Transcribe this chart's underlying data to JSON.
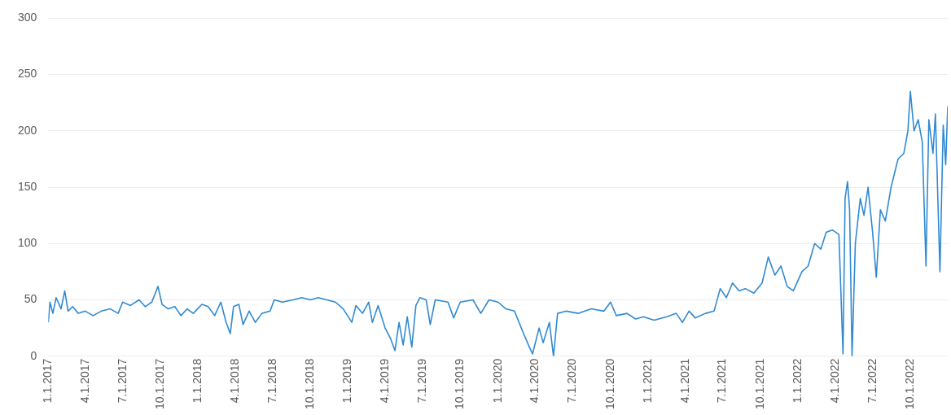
{
  "chart_data": {
    "type": "line",
    "color": "#2f8ad3",
    "grid": "y",
    "legend": false,
    "marker": "none",
    "line_style": "solid",
    "x": [
      "2017-01-01",
      "2017-01-05",
      "2017-01-12",
      "2017-01-20",
      "2017-02-01",
      "2017-02-10",
      "2017-02-18",
      "2017-03-01",
      "2017-03-15",
      "2017-04-01",
      "2017-04-20",
      "2017-05-10",
      "2017-06-01",
      "2017-06-20",
      "2017-07-01",
      "2017-07-20",
      "2017-08-10",
      "2017-08-25",
      "2017-09-10",
      "2017-09-25",
      "2017-10-05",
      "2017-10-20",
      "2017-11-05",
      "2017-11-20",
      "2017-12-05",
      "2017-12-20",
      "2018-01-10",
      "2018-01-25",
      "2018-02-10",
      "2018-02-25",
      "2018-03-10",
      "2018-03-20",
      "2018-03-28",
      "2018-04-10",
      "2018-04-20",
      "2018-05-05",
      "2018-05-20",
      "2018-06-05",
      "2018-06-25",
      "2018-07-05",
      "2018-07-25",
      "2018-08-20",
      "2018-09-10",
      "2018-10-01",
      "2018-10-20",
      "2018-11-10",
      "2018-12-01",
      "2018-12-20",
      "2019-01-10",
      "2019-01-20",
      "2019-02-05",
      "2019-02-20",
      "2019-03-01",
      "2019-03-15",
      "2019-04-01",
      "2019-04-15",
      "2019-04-25",
      "2019-05-05",
      "2019-05-15",
      "2019-05-25",
      "2019-06-05",
      "2019-06-15",
      "2019-06-25",
      "2019-07-10",
      "2019-07-20",
      "2019-08-01",
      "2019-09-01",
      "2019-09-15",
      "2019-10-01",
      "2019-11-01",
      "2019-11-20",
      "2019-12-10",
      "2020-01-01",
      "2020-01-20",
      "2020-02-10",
      "2020-03-01",
      "2020-03-15",
      "2020-03-25",
      "2020-04-10",
      "2020-04-20",
      "2020-05-05",
      "2020-05-15",
      "2020-05-25",
      "2020-06-15",
      "2020-07-15",
      "2020-08-15",
      "2020-09-15",
      "2020-10-01",
      "2020-10-15",
      "2020-11-10",
      "2020-12-01",
      "2020-12-20",
      "2021-01-15",
      "2021-02-15",
      "2021-03-10",
      "2021-03-25",
      "2021-04-10",
      "2021-04-25",
      "2021-05-20",
      "2021-06-10",
      "2021-06-25",
      "2021-07-10",
      "2021-07-25",
      "2021-08-10",
      "2021-08-25",
      "2021-09-15",
      "2021-10-05",
      "2021-10-20",
      "2021-11-05",
      "2021-11-20",
      "2021-12-05",
      "2021-12-20",
      "2022-01-10",
      "2022-01-25",
      "2022-02-10",
      "2022-02-25",
      "2022-03-10",
      "2022-03-25",
      "2022-04-10",
      "2022-04-20",
      "2022-04-25",
      "2022-05-01",
      "2022-05-06",
      "2022-05-12",
      "2022-05-20",
      "2022-06-01",
      "2022-06-10",
      "2022-06-20",
      "2022-07-01",
      "2022-07-10",
      "2022-07-20",
      "2022-08-01",
      "2022-08-15",
      "2022-09-01",
      "2022-09-15",
      "2022-09-25",
      "2022-10-01",
      "2022-10-10",
      "2022-10-20",
      "2022-10-30",
      "2022-11-08",
      "2022-11-15",
      "2022-11-25",
      "2022-12-01",
      "2022-12-12",
      "2022-12-20",
      "2022-12-26",
      "2022-12-31"
    ],
    "values": [
      30,
      48,
      38,
      52,
      42,
      58,
      40,
      44,
      38,
      40,
      36,
      40,
      42,
      38,
      48,
      45,
      50,
      44,
      48,
      62,
      46,
      42,
      44,
      36,
      42,
      38,
      46,
      44,
      36,
      48,
      30,
      20,
      44,
      46,
      28,
      40,
      30,
      38,
      40,
      50,
      48,
      50,
      52,
      50,
      52,
      50,
      48,
      42,
      30,
      45,
      38,
      48,
      30,
      45,
      25,
      15,
      5,
      30,
      10,
      35,
      8,
      45,
      52,
      50,
      28,
      50,
      48,
      34,
      48,
      50,
      38,
      50,
      48,
      42,
      40,
      22,
      10,
      2,
      25,
      12,
      30,
      0,
      38,
      40,
      38,
      42,
      40,
      48,
      36,
      38,
      33,
      35,
      32,
      35,
      38,
      30,
      40,
      34,
      38,
      40,
      60,
      52,
      65,
      58,
      60,
      56,
      65,
      88,
      72,
      80,
      62,
      58,
      75,
      80,
      100,
      95,
      110,
      112,
      108,
      2,
      140,
      155,
      130,
      0,
      100,
      140,
      125,
      150,
      110,
      70,
      130,
      120,
      150,
      175,
      180,
      200,
      235,
      200,
      210,
      190,
      80,
      210,
      180,
      215,
      75,
      205,
      170,
      222
    ],
    "xlim": [
      "2017-01-01",
      "2022-12-31"
    ],
    "xticks": [
      {
        "value": "2017-01-01",
        "label": "1.1.2017"
      },
      {
        "value": "2017-04-01",
        "label": "4.1.2017"
      },
      {
        "value": "2017-07-01",
        "label": "7.1.2017"
      },
      {
        "value": "2017-10-01",
        "label": "10.1.2017"
      },
      {
        "value": "2018-01-01",
        "label": "1.1.2018"
      },
      {
        "value": "2018-04-01",
        "label": "4.1.2018"
      },
      {
        "value": "2018-07-01",
        "label": "7.1.2018"
      },
      {
        "value": "2018-10-01",
        "label": "10.1.2018"
      },
      {
        "value": "2019-01-01",
        "label": "1.1.2019"
      },
      {
        "value": "2019-04-01",
        "label": "4.1.2019"
      },
      {
        "value": "2019-07-01",
        "label": "7.1.2019"
      },
      {
        "value": "2019-10-01",
        "label": "10.1.2019"
      },
      {
        "value": "2020-01-01",
        "label": "1.1.2020"
      },
      {
        "value": "2020-04-01",
        "label": "4.1.2020"
      },
      {
        "value": "2020-07-01",
        "label": "7.1.2020"
      },
      {
        "value": "2020-10-01",
        "label": "10.1.2020"
      },
      {
        "value": "2021-01-01",
        "label": "1.1.2021"
      },
      {
        "value": "2021-04-01",
        "label": "4.1.2021"
      },
      {
        "value": "2021-07-01",
        "label": "7.1.2021"
      },
      {
        "value": "2021-10-01",
        "label": "10.1.2021"
      },
      {
        "value": "2022-01-01",
        "label": "1.1.2022"
      },
      {
        "value": "2022-04-01",
        "label": "4.1.2022"
      },
      {
        "value": "2022-07-01",
        "label": "7.1.2022"
      },
      {
        "value": "2022-10-01",
        "label": "10.1.2022"
      }
    ],
    "ylim": [
      0,
      300
    ],
    "yticks": [
      0,
      50,
      100,
      150,
      200,
      250,
      300
    ]
  }
}
